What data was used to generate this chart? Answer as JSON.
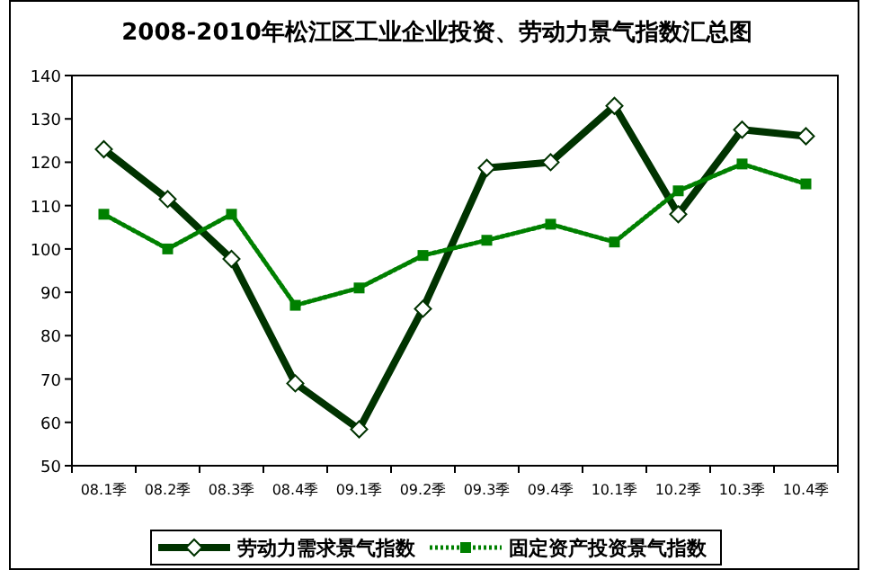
{
  "chart_data": {
    "type": "line",
    "title": "2008-2010年松江区工业企业投资、劳动力景气指数汇总图",
    "categories": [
      "08.1季",
      "08.2季",
      "08.3季",
      "08.4季",
      "09.1季",
      "09.2季",
      "09.3季",
      "09.4季",
      "10.1季",
      "10.2季",
      "10.3季",
      "10.4季"
    ],
    "ylim": [
      50,
      140
    ],
    "yticks": [
      50,
      60,
      70,
      80,
      90,
      100,
      110,
      120,
      130,
      140
    ],
    "grid": false,
    "legend": "bottom",
    "series": [
      {
        "name": "劳动力需求景气指数",
        "color": "#003300",
        "marker": "diamond",
        "line_style": "solid",
        "values": [
          123,
          111.5,
          97.7,
          69,
          58.4,
          86.2,
          118.7,
          120,
          133,
          108,
          127.5,
          126
        ]
      },
      {
        "name": "固定资产投资景气指数",
        "color": "#008000",
        "marker": "square",
        "line_style": "dotted",
        "values": [
          108,
          100,
          108,
          87,
          91,
          98.5,
          102,
          105.7,
          101.6,
          113.4,
          119.6,
          115
        ]
      }
    ]
  }
}
